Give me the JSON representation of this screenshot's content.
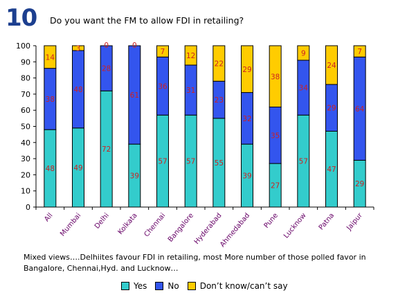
{
  "header": {
    "number": "10",
    "question": "Do you want the FM to allow FDI in retailing?"
  },
  "caption": "Mixed views….Delhiites favour FDI in retailing, most More number of those polled favor in Bangalore, Chennai,Hyd. and Lucknow…",
  "chart_data": {
    "type": "bar",
    "stacked": true,
    "categories": [
      "All",
      "Mumbai",
      "Delhi",
      "Kolkata",
      "Chennai",
      "Bangalore",
      "Hyderabad",
      "Ahmedabad",
      "Pune",
      "Lucknow",
      "Patna",
      "Jaipur"
    ],
    "series": [
      {
        "name": "Yes",
        "color": "#33cccc",
        "values": [
          48,
          49,
          72,
          39,
          57,
          57,
          55,
          39,
          27,
          57,
          47,
          29
        ]
      },
      {
        "name": "No",
        "color": "#3355ee",
        "values": [
          38,
          48,
          28,
          61,
          36,
          31,
          23,
          32,
          35,
          34,
          29,
          64
        ]
      },
      {
        "name": "Don’t know/can’t say",
        "color": "#ffcc00",
        "values": [
          14,
          3,
          0,
          0,
          7,
          12,
          22,
          29,
          38,
          9,
          24,
          7
        ]
      }
    ],
    "ylim": [
      0,
      100
    ],
    "yticks": [
      "0",
      "10",
      "20",
      "30",
      "40",
      "50",
      "60",
      "70",
      "80",
      "90",
      "100"
    ],
    "ylabel": "",
    "xlabel": "",
    "grid": false,
    "legend": "bottom",
    "colors": {
      "label": "#cc2222",
      "category": "#660066",
      "axis": "#000000"
    }
  }
}
